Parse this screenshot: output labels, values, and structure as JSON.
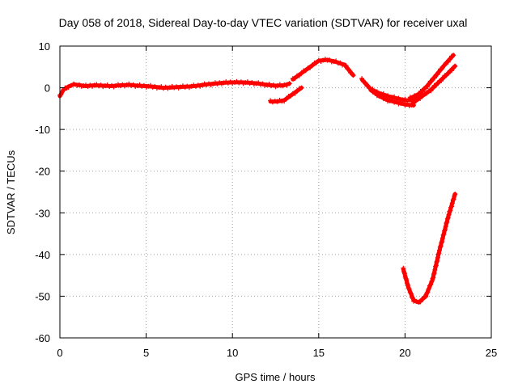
{
  "chart_data": {
    "type": "scatter",
    "title": "Day 058 of 2018, Sidereal Day-to-day VTEC variation (SDTVAR) for receiver uxal",
    "xlabel": "GPS time / hours",
    "ylabel": "SDTVAR / TECUs",
    "xlim": [
      0,
      25
    ],
    "ylim": [
      -60,
      10
    ],
    "xticks": [
      0,
      5,
      10,
      15,
      20,
      25
    ],
    "yticks": [
      10,
      0,
      -10,
      -20,
      -30,
      -40,
      -50,
      -60
    ],
    "grid": true,
    "series_color": "#ff0000",
    "series": [
      {
        "name": "track-1",
        "x": [
          0.0,
          0.2,
          0.5,
          0.8,
          1.0,
          1.5,
          2.0,
          2.5,
          3.0,
          3.5,
          4.0,
          4.5,
          5.0,
          5.5,
          6.0,
          6.5,
          7.0,
          7.5,
          8.0,
          8.5,
          9.0,
          9.5,
          10.0,
          10.5,
          11.0,
          11.5,
          12.0,
          12.5,
          13.0,
          13.3
        ],
        "y": [
          -2.0,
          -0.5,
          0.3,
          0.8,
          0.7,
          0.4,
          0.6,
          0.5,
          0.4,
          0.6,
          0.7,
          0.5,
          0.4,
          0.2,
          0.0,
          0.1,
          0.2,
          0.3,
          0.5,
          0.8,
          1.0,
          1.2,
          1.3,
          1.3,
          1.2,
          1.0,
          0.7,
          0.5,
          0.6,
          1.0
        ]
      },
      {
        "name": "track-2",
        "x": [
          12.2,
          12.6,
          13.0,
          13.5,
          14.0
        ],
        "y": [
          -3.3,
          -3.3,
          -3.0,
          -1.5,
          0.0
        ]
      },
      {
        "name": "track-3",
        "x": [
          13.5,
          14.0,
          14.5,
          15.0,
          15.5,
          16.0,
          16.5,
          17.0
        ],
        "y": [
          2.0,
          3.5,
          5.0,
          6.5,
          6.7,
          6.2,
          5.5,
          3.0
        ]
      },
      {
        "name": "track-4",
        "x": [
          17.5,
          18.0,
          18.5,
          19.0,
          19.5,
          20.0,
          20.5,
          21.0
        ],
        "y": [
          2.0,
          -0.3,
          -1.3,
          -2.0,
          -2.5,
          -3.0,
          -3.0,
          -1.5
        ]
      },
      {
        "name": "track-5",
        "x": [
          18.0,
          18.5,
          19.0,
          19.5,
          20.0,
          20.5
        ],
        "y": [
          -0.5,
          -2.0,
          -3.0,
          -3.5,
          -4.0,
          -4.2
        ]
      },
      {
        "name": "track-6",
        "x": [
          20.3,
          20.8,
          21.3,
          21.8,
          22.3,
          22.8
        ],
        "y": [
          -2.5,
          -1.5,
          0.5,
          3.0,
          5.5,
          7.8
        ]
      },
      {
        "name": "track-7",
        "x": [
          20.5,
          21.0,
          21.5,
          22.0,
          22.5,
          22.9
        ],
        "y": [
          -3.5,
          -2.0,
          -0.5,
          1.5,
          3.5,
          5.2
        ]
      },
      {
        "name": "track-8",
        "x": [
          19.9,
          20.2,
          20.5,
          20.8,
          21.2,
          21.6,
          22.0,
          22.5,
          22.9
        ],
        "y": [
          -43.5,
          -48.0,
          -51.0,
          -51.5,
          -50.0,
          -46.0,
          -39.0,
          -31.0,
          -25.5
        ]
      }
    ]
  }
}
